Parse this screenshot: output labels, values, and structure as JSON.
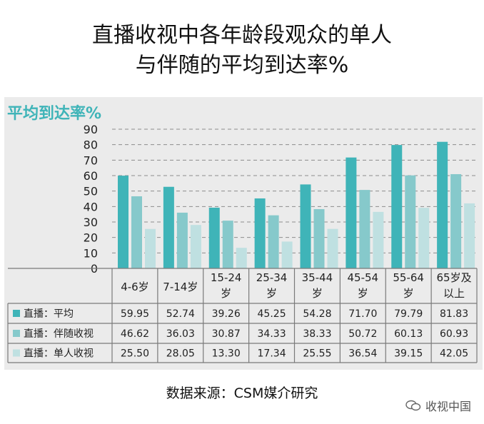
{
  "title": {
    "line1": "直播收视中各年龄段观众的单人",
    "line2": "与伴随的平均到达率%"
  },
  "panel_title": "平均到达率%",
  "source": "数据来源：CSM媒介研究",
  "watermark": "收视中国",
  "colors": {
    "series1": "#3fb4b8",
    "series2": "#86c9cb",
    "series3": "#bfe0e1",
    "grid": "#8c8c8c",
    "panel": "#ebebeb"
  },
  "chart_data": {
    "type": "bar",
    "ylim": [
      0,
      90
    ],
    "yticks": [
      "0",
      "10",
      "20",
      "30",
      "40",
      "50",
      "60",
      "70",
      "80",
      "90"
    ],
    "categories": [
      [
        "4-6岁"
      ],
      [
        "7-14岁"
      ],
      [
        "15-24",
        "岁"
      ],
      [
        "25-34",
        "岁"
      ],
      [
        "35-44",
        "岁"
      ],
      [
        "45-54",
        "岁"
      ],
      [
        "55-64",
        "岁"
      ],
      [
        "65岁及",
        "以上"
      ]
    ],
    "series": [
      {
        "name": "直播：平均",
        "values": [
          59.95,
          52.74,
          39.26,
          45.25,
          54.28,
          71.7,
          79.79,
          81.83
        ],
        "labels": [
          "59.95",
          "52.74",
          "39.26",
          "45.25",
          "54.28",
          "71.70",
          "79.79",
          "81.83"
        ]
      },
      {
        "name": "直播：伴随收视",
        "values": [
          46.62,
          36.03,
          30.87,
          34.33,
          38.33,
          50.72,
          60.13,
          60.93
        ],
        "labels": [
          "46.62",
          "36.03",
          "30.87",
          "34.33",
          "38.33",
          "50.72",
          "60.13",
          "60.93"
        ]
      },
      {
        "name": "直播：单人收视",
        "values": [
          25.5,
          28.05,
          13.3,
          17.34,
          25.55,
          36.54,
          39.15,
          42.05
        ],
        "labels": [
          "25.50",
          "28.05",
          "13.30",
          "17.34",
          "25.55",
          "36.54",
          "39.15",
          "42.05"
        ]
      }
    ]
  }
}
